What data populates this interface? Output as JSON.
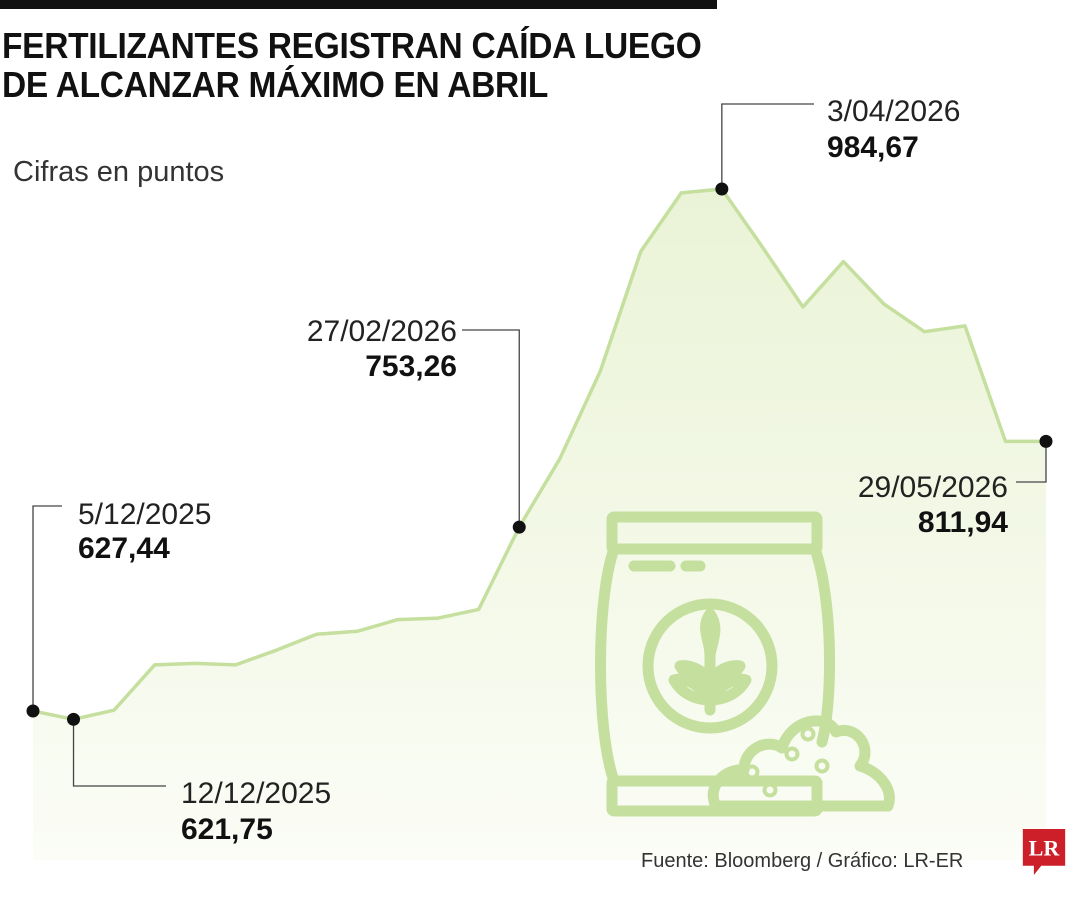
{
  "header": {
    "title_line1": "FERTILIZANTES REGISTRAN CAÍDA LUEGO",
    "title_line2": "DE ALCANZAR MÁXIMO EN ABRIL",
    "subtitle": "Cifras en puntos"
  },
  "footer": {
    "source": "Fuente: Bloomberg / Gráfico: LR-ER",
    "logo_text": "LR"
  },
  "colors": {
    "line": "#c5df9e",
    "area": "#f3f8e6",
    "icon": "#c5df9e",
    "marker": "#111111",
    "logo": "#cc1f2a"
  },
  "chart_data": {
    "type": "area",
    "y_unit": "puntos",
    "ylim": [
      560,
      1010
    ],
    "grid": false,
    "legend": "none",
    "x": [
      "2025-12-05",
      "2025-12-12",
      "2025-12-19",
      "2025-12-26",
      "2026-01-02",
      "2026-01-09",
      "2026-01-16",
      "2026-01-23",
      "2026-01-30",
      "2026-02-06",
      "2026-02-13",
      "2026-02-20",
      "2026-02-27",
      "2026-03-06",
      "2026-03-13",
      "2026-03-20",
      "2026-03-27",
      "2026-04-03",
      "2026-04-10",
      "2026-04-17",
      "2026-04-24",
      "2026-05-01",
      "2026-05-08",
      "2026-05-15",
      "2026-05-22",
      "2026-05-29"
    ],
    "values": [
      627.44,
      621.75,
      628,
      659,
      660,
      659,
      669,
      680,
      682,
      690,
      691,
      697,
      753.26,
      800,
      860,
      942,
      982,
      984.67,
      945,
      904,
      935,
      906,
      887,
      891,
      811.94,
      811.94
    ],
    "labels": [
      {
        "date": "5/12/2025",
        "value": "627,44"
      },
      {
        "date": "12/12/2025",
        "value": "621,75"
      },
      {
        "date": "27/02/2026",
        "value": "753,26"
      },
      {
        "date": "3/04/2026",
        "value": "984,67"
      },
      {
        "date": "29/05/2026",
        "value": "811,94"
      }
    ]
  }
}
